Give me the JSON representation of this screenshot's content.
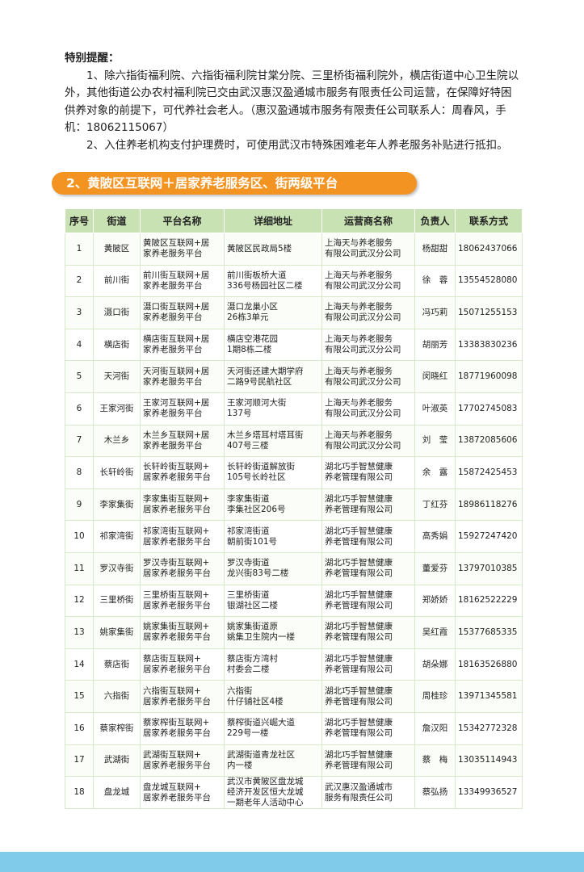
{
  "notice": {
    "title": "特别提醒：",
    "paragraphs": [
      "1、除六指街福利院、六指街福利院甘棠分院、三里桥街福利院外，横店街道中心卫生院以外，其他街道公办农村福利院已交由武汉惠汉盈通城市服务有限责任公司运营，在保障好特困供养对象的前提下，可代养社会老人。（惠汉盈通城市服务有限责任公司联系人：周春风，手机：18062115067）",
      "2、入住养老机构支付护理费时，可使用武汉市特殊困难老年人养老服务补贴进行抵扣。"
    ]
  },
  "section": {
    "title": "2、黄陂区互联网＋居家养老服务区、街两级平台"
  },
  "table": {
    "header": [
      "序号",
      "街道",
      "平台名称",
      "详细地址",
      "运营商名称",
      "负责人",
      "联系方式"
    ],
    "rows": [
      [
        [
          "1"
        ],
        [
          "黄陂区"
        ],
        [
          "黄陂区互联网+居",
          "家养老服务平台"
        ],
        [
          "黄陂区民政局5楼"
        ],
        [
          "上海天与养老服务",
          "有限公司武汉分公司"
        ],
        [
          "杨甜甜"
        ],
        [
          "18062437066"
        ]
      ],
      [
        [
          "2"
        ],
        [
          "前川街"
        ],
        [
          "前川街互联网+居",
          "家养老服务平台"
        ],
        [
          "前川街板桥大道",
          "336号杨园社区二楼"
        ],
        [
          "上海天与养老服务",
          "有限公司武汉分公司"
        ],
        [
          "徐　蓉"
        ],
        [
          "13554528080"
        ]
      ],
      [
        [
          "3"
        ],
        [
          "滠口街"
        ],
        [
          "滠口街互联网+居",
          "家养老服务平台"
        ],
        [
          "滠口龙巢小区",
          "26栋3单元"
        ],
        [
          "上海天与养老服务",
          "有限公司武汉分公司"
        ],
        [
          "冯巧莉"
        ],
        [
          "15071255153"
        ]
      ],
      [
        [
          "4"
        ],
        [
          "横店街"
        ],
        [
          "横店街互联网+居",
          "家养老服务平台"
        ],
        [
          "横店空港花园",
          "1期8栋二楼"
        ],
        [
          "上海天与养老服务",
          "有限公司武汉分公司"
        ],
        [
          "胡丽芳"
        ],
        [
          "13383830236"
        ]
      ],
      [
        [
          "5"
        ],
        [
          "天河街"
        ],
        [
          "天河街互联网+居",
          "家养老服务平台"
        ],
        [
          "天河街还建大期学府",
          "二路9号民航社区"
        ],
        [
          "上海天与养老服务",
          "有限公司武汉分公司"
        ],
        [
          "闵晓红"
        ],
        [
          "18771960098"
        ]
      ],
      [
        [
          "6"
        ],
        [
          "王家河街"
        ],
        [
          "王家河互联网+居",
          "家养老服务平台"
        ],
        [
          "王家河顺河大街",
          "137号"
        ],
        [
          "上海天与养老服务",
          "有限公司武汉分公司"
        ],
        [
          "叶淑英"
        ],
        [
          "17702745083"
        ]
      ],
      [
        [
          "7"
        ],
        [
          "木兰乡"
        ],
        [
          "木兰乡互联网+居",
          "家养老服务平台"
        ],
        [
          "木兰乡塔耳村塔耳街",
          "407号三楼"
        ],
        [
          "上海天与养老服务",
          "有限公司武汉分公司"
        ],
        [
          "刘　莹"
        ],
        [
          "13872085606"
        ]
      ],
      [
        [
          "8"
        ],
        [
          "长轩岭街"
        ],
        [
          "长轩岭街互联网+",
          "居家养老服务平台"
        ],
        [
          "长轩岭街道解放街",
          "105号长岭社区"
        ],
        [
          "湖北巧手智慧健康",
          "养老管理有限公司"
        ],
        [
          "余　露"
        ],
        [
          "15872425453"
        ]
      ],
      [
        [
          "9"
        ],
        [
          "李家集街"
        ],
        [
          "李家集街互联网+",
          "居家养老服务平台"
        ],
        [
          "李家集街道",
          "李集社区206号"
        ],
        [
          "湖北巧手智慧健康",
          "养老管理有限公司"
        ],
        [
          "丁红芬"
        ],
        [
          "18986118276"
        ]
      ],
      [
        [
          "10"
        ],
        [
          "祁家湾街"
        ],
        [
          "祁家湾街互联网+",
          "居家养老服务平台"
        ],
        [
          "祁家湾街道",
          "朝前街101号"
        ],
        [
          "湖北巧手智慧健康",
          "养老管理有限公司"
        ],
        [
          "高秀娟"
        ],
        [
          "15927247420"
        ]
      ],
      [
        [
          "11"
        ],
        [
          "罗汉寺街"
        ],
        [
          "罗汉寺街互联网+",
          "居家养老服务平台"
        ],
        [
          "罗汉寺街道",
          "龙兴街83号二楼"
        ],
        [
          "湖北巧手智慧健康",
          "养老管理有限公司"
        ],
        [
          "董爱芬"
        ],
        [
          "13797010385"
        ]
      ],
      [
        [
          "12"
        ],
        [
          "三里桥街"
        ],
        [
          "三里桥街互联网+",
          "居家养老服务平台"
        ],
        [
          "三里桥街道",
          "银湖社区二楼"
        ],
        [
          "湖北巧手智慧健康",
          "养老管理有限公司"
        ],
        [
          "郑娇娇"
        ],
        [
          "18162522229"
        ]
      ],
      [
        [
          "13"
        ],
        [
          "姚家集街"
        ],
        [
          "姚家集街互联网+",
          "居家养老服务平台"
        ],
        [
          "姚家集街道原",
          "姚集卫生院内一楼"
        ],
        [
          "湖北巧手智慧健康",
          "养老管理有限公司"
        ],
        [
          "吴红霞"
        ],
        [
          "15377685335"
        ]
      ],
      [
        [
          "14"
        ],
        [
          "蔡店街"
        ],
        [
          "蔡店街互联网+",
          "居家养老服务平台"
        ],
        [
          "蔡店街方湾村",
          "村委会二楼"
        ],
        [
          "湖北巧手智慧健康",
          "养老管理有限公司"
        ],
        [
          "胡朵娜"
        ],
        [
          "18163526880"
        ]
      ],
      [
        [
          "15"
        ],
        [
          "六指街"
        ],
        [
          "六指街互联网+",
          "居家养老服务平台"
        ],
        [
          "六指街",
          "什仔铺社区4楼"
        ],
        [
          "湖北巧手智慧健康",
          "养老管理有限公司"
        ],
        [
          "周桂珍"
        ],
        [
          "13971345581"
        ]
      ],
      [
        [
          "16"
        ],
        [
          "蔡家榨街"
        ],
        [
          "蔡家榨街互联网+",
          "居家养老服务平台"
        ],
        [
          "蔡榨街道兴崛大道",
          "229号一楼"
        ],
        [
          "湖北巧手智慧健康",
          "养老管理有限公司"
        ],
        [
          "詹汉阳"
        ],
        [
          "15342772328"
        ]
      ],
      [
        [
          "17"
        ],
        [
          "武湖街"
        ],
        [
          "武湖街互联网+",
          "居家养老服务平台"
        ],
        [
          "武湖街道青龙社区",
          "内一楼"
        ],
        [
          "湖北巧手智慧健康",
          "养老管理有限公司"
        ],
        [
          "蔡　梅"
        ],
        [
          "13035114943"
        ]
      ],
      [
        [
          "18"
        ],
        [
          "盘龙城"
        ],
        [
          "盘龙城互联网+",
          "居家养老服务平台"
        ],
        [
          "武汉市黄陂区盘龙城",
          "经济开发区恒大龙城",
          "一期老年人活动中心"
        ],
        [
          "武汉惠汉盈通城市",
          "服务有限责任公司"
        ],
        [
          "蔡弘扬"
        ],
        [
          "13349936527"
        ]
      ]
    ]
  }
}
